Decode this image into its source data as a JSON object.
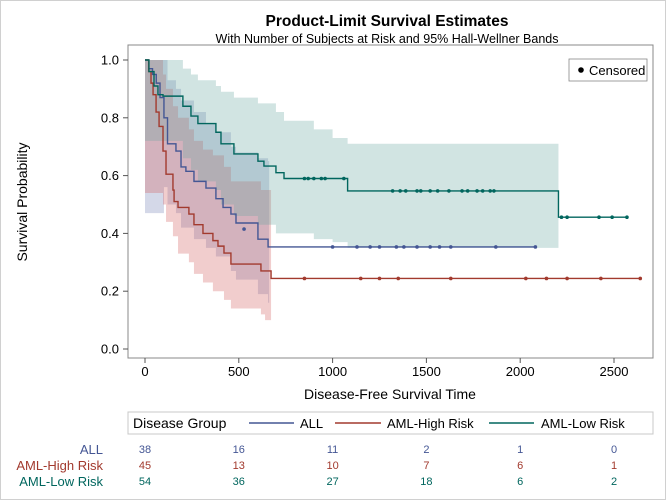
{
  "chart_data": {
    "type": "line",
    "title": "Product-Limit Survival Estimates",
    "subtitle": "With Number of Subjects at Risk and 95% Hall-Wellner Bands",
    "xlabel": "Disease-Free Survival Time",
    "ylabel": "Survival Probability",
    "xlim": [
      -100,
      2700
    ],
    "ylim": [
      0,
      1
    ],
    "xticks": [
      0,
      500,
      1000,
      1500,
      2000,
      2500
    ],
    "yticks": [
      "0.0",
      "0.2",
      "0.4",
      "0.6",
      "0.8",
      "1.0"
    ],
    "grid": false,
    "inset_legend": {
      "label": "Censored",
      "placement": "top-right"
    },
    "legend": {
      "title": "Disease Group",
      "placement": "bottom"
    },
    "series": [
      {
        "name": "ALL",
        "color": "#445694",
        "band_color": "#6F7EB3",
        "end": 2081,
        "band_end": 662,
        "steps": [
          [
            0,
            1
          ],
          [
            20,
            0.97
          ],
          [
            40,
            0.95
          ],
          [
            60,
            0.92
          ],
          [
            80,
            0.87
          ],
          [
            101,
            0.8
          ],
          [
            120,
            0.71
          ],
          [
            165,
            0.685
          ],
          [
            192,
            0.63
          ],
          [
            218,
            0.615
          ],
          [
            261,
            0.58
          ],
          [
            325,
            0.557
          ],
          [
            378,
            0.52
          ],
          [
            416,
            0.49
          ],
          [
            458,
            0.467
          ],
          [
            485,
            0.436
          ],
          [
            602,
            0.38
          ],
          [
            656,
            0.353
          ]
        ],
        "band": [
          [
            0,
            0.47,
            1
          ],
          [
            60,
            0.47,
            1
          ],
          [
            101,
            0.56,
            1
          ],
          [
            120,
            0.5,
            0.93
          ],
          [
            165,
            0.47,
            0.9
          ],
          [
            192,
            0.42,
            0.86
          ],
          [
            261,
            0.38,
            0.82
          ],
          [
            325,
            0.35,
            0.78
          ],
          [
            378,
            0.32,
            0.75
          ],
          [
            458,
            0.27,
            0.7
          ],
          [
            485,
            0.24,
            0.68
          ],
          [
            602,
            0.19,
            0.66
          ],
          [
            656,
            0.16,
            0.65
          ]
        ],
        "censored": [
          [
            528,
            0.415
          ],
          [
            1000,
            0.353
          ],
          [
            1130,
            0.353
          ],
          [
            1200,
            0.353
          ],
          [
            1250,
            0.353
          ],
          [
            1340,
            0.353
          ],
          [
            1380,
            0.353
          ],
          [
            1450,
            0.353
          ],
          [
            1520,
            0.353
          ],
          [
            1570,
            0.353
          ],
          [
            1630,
            0.353
          ],
          [
            1870,
            0.353
          ],
          [
            2081,
            0.353
          ]
        ]
      },
      {
        "name": "AML-High Risk",
        "color": "#A23A2E",
        "band_color": "#D05B5B",
        "end": 2640,
        "band_end": 672,
        "steps": [
          [
            0,
            1
          ],
          [
            20,
            0.96
          ],
          [
            32,
            0.92
          ],
          [
            43,
            0.88
          ],
          [
            59,
            0.82
          ],
          [
            75,
            0.77
          ],
          [
            96,
            0.685
          ],
          [
            112,
            0.605
          ],
          [
            149,
            0.55
          ],
          [
            155,
            0.51
          ],
          [
            176,
            0.49
          ],
          [
            234,
            0.467
          ],
          [
            261,
            0.43
          ],
          [
            309,
            0.4
          ],
          [
            362,
            0.375
          ],
          [
            389,
            0.356
          ],
          [
            421,
            0.332
          ],
          [
            458,
            0.294
          ],
          [
            618,
            0.27
          ],
          [
            672,
            0.244
          ]
        ],
        "band": [
          [
            0,
            0.54,
            1
          ],
          [
            75,
            0.54,
            1
          ],
          [
            96,
            0.5,
            0.95
          ],
          [
            112,
            0.44,
            0.9
          ],
          [
            149,
            0.39,
            0.84
          ],
          [
            176,
            0.33,
            0.8
          ],
          [
            234,
            0.3,
            0.76
          ],
          [
            261,
            0.26,
            0.72
          ],
          [
            309,
            0.23,
            0.69
          ],
          [
            362,
            0.2,
            0.67
          ],
          [
            421,
            0.17,
            0.63
          ],
          [
            458,
            0.14,
            0.58
          ],
          [
            618,
            0.12,
            0.55
          ],
          [
            640,
            0.1,
            0.55
          ],
          [
            672,
            0.1,
            0.54
          ]
        ],
        "censored": [
          [
            850,
            0.244
          ],
          [
            1150,
            0.244
          ],
          [
            1250,
            0.244
          ],
          [
            1350,
            0.244
          ],
          [
            1630,
            0.244
          ],
          [
            2030,
            0.244
          ],
          [
            2140,
            0.244
          ],
          [
            2250,
            0.244
          ],
          [
            2430,
            0.244
          ],
          [
            2640,
            0.244
          ]
        ]
      },
      {
        "name": "AML-Low Risk",
        "color": "#01665E",
        "band_color": "#66A5A0",
        "end": 2569,
        "band_end": 2204,
        "steps": [
          [
            0,
            1
          ],
          [
            21,
            0.96
          ],
          [
            48,
            0.91
          ],
          [
            69,
            0.88
          ],
          [
            96,
            0.875
          ],
          [
            202,
            0.84
          ],
          [
            245,
            0.806
          ],
          [
            282,
            0.78
          ],
          [
            378,
            0.75
          ],
          [
            405,
            0.71
          ],
          [
            474,
            0.675
          ],
          [
            602,
            0.65
          ],
          [
            634,
            0.633
          ],
          [
            698,
            0.61
          ],
          [
            741,
            0.59
          ],
          [
            1080,
            0.547
          ],
          [
            2204,
            0.456
          ]
        ],
        "band": [
          [
            0,
            0.72,
            1
          ],
          [
            96,
            0.72,
            1
          ],
          [
            202,
            0.66,
            0.97
          ],
          [
            245,
            0.62,
            0.95
          ],
          [
            282,
            0.58,
            0.93
          ],
          [
            378,
            0.55,
            0.91
          ],
          [
            405,
            0.5,
            0.89
          ],
          [
            474,
            0.46,
            0.87
          ],
          [
            602,
            0.43,
            0.85
          ],
          [
            698,
            0.4,
            0.82
          ],
          [
            741,
            0.4,
            0.79
          ],
          [
            900,
            0.38,
            0.76
          ],
          [
            1000,
            0.37,
            0.73
          ],
          [
            1080,
            0.35,
            0.71
          ],
          [
            2204,
            0.35,
            0.71
          ]
        ],
        "censored": [
          [
            850,
            0.59
          ],
          [
            870,
            0.59
          ],
          [
            900,
            0.59
          ],
          [
            940,
            0.59
          ],
          [
            960,
            0.59
          ],
          [
            1060,
            0.59
          ],
          [
            1320,
            0.547
          ],
          [
            1360,
            0.547
          ],
          [
            1390,
            0.547
          ],
          [
            1450,
            0.547
          ],
          [
            1470,
            0.547
          ],
          [
            1520,
            0.547
          ],
          [
            1560,
            0.547
          ],
          [
            1620,
            0.547
          ],
          [
            1690,
            0.547
          ],
          [
            1720,
            0.547
          ],
          [
            1770,
            0.547
          ],
          [
            1800,
            0.547
          ],
          [
            1840,
            0.547
          ],
          [
            1860,
            0.547
          ],
          [
            2220,
            0.456
          ],
          [
            2250,
            0.456
          ],
          [
            2420,
            0.456
          ],
          [
            2490,
            0.456
          ],
          [
            2569,
            0.456
          ]
        ]
      }
    ],
    "at_risk": {
      "times": [
        0,
        500,
        1000,
        1500,
        2000,
        2500
      ],
      "rows": [
        {
          "name": "ALL",
          "counts": [
            "38",
            "16",
            "11",
            "2",
            "1",
            "0"
          ]
        },
        {
          "name": "AML-High Risk",
          "counts": [
            "45",
            "13",
            "10",
            "7",
            "6",
            "1"
          ]
        },
        {
          "name": "AML-Low Risk",
          "counts": [
            "54",
            "36",
            "27",
            "18",
            "6",
            "2"
          ]
        }
      ]
    }
  }
}
